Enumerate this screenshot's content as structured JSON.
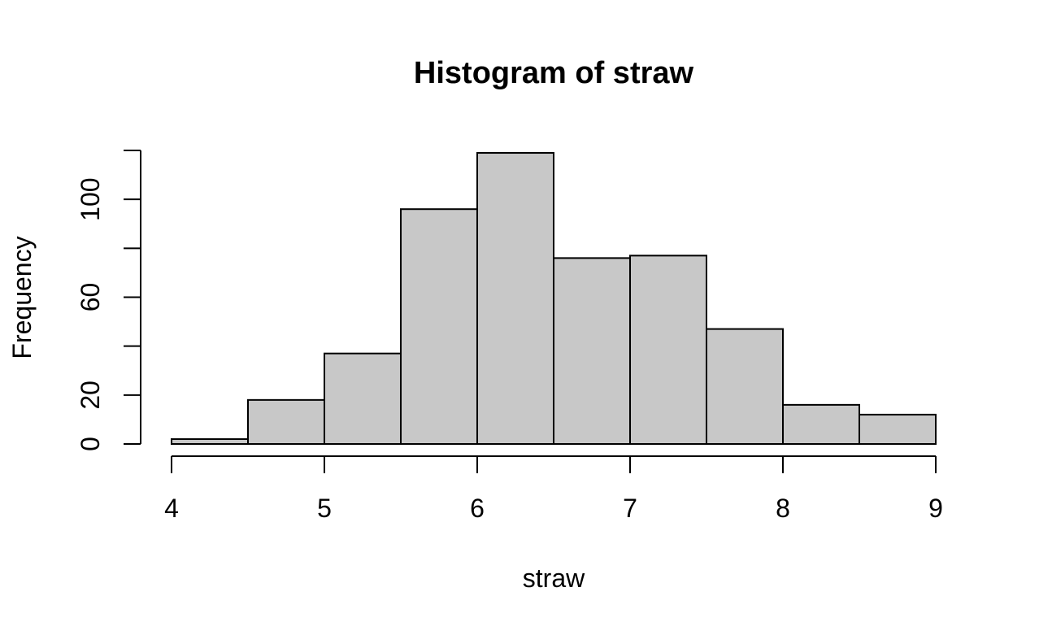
{
  "chart_data": {
    "type": "bar",
    "title": "Histogram of straw",
    "xlabel": "straw",
    "ylabel": "Frequency",
    "bin_edges": [
      4,
      4.5,
      5,
      5.5,
      6,
      6.5,
      7,
      7.5,
      8,
      8.5,
      9
    ],
    "values": [
      2,
      18,
      37,
      96,
      119,
      76,
      77,
      47,
      16,
      12
    ],
    "xlim": [
      4,
      9
    ],
    "ylim": [
      0,
      120
    ],
    "x_ticks": [
      4,
      5,
      6,
      7,
      8,
      9
    ],
    "y_ticks": [
      0,
      20,
      40,
      60,
      80,
      100,
      120
    ],
    "y_tick_labels": [
      "0",
      "20",
      "",
      "60",
      "",
      "100",
      ""
    ],
    "grid": false,
    "colors": {
      "bar_fill": "#c8c8c8",
      "bar_stroke": "#000000"
    }
  }
}
